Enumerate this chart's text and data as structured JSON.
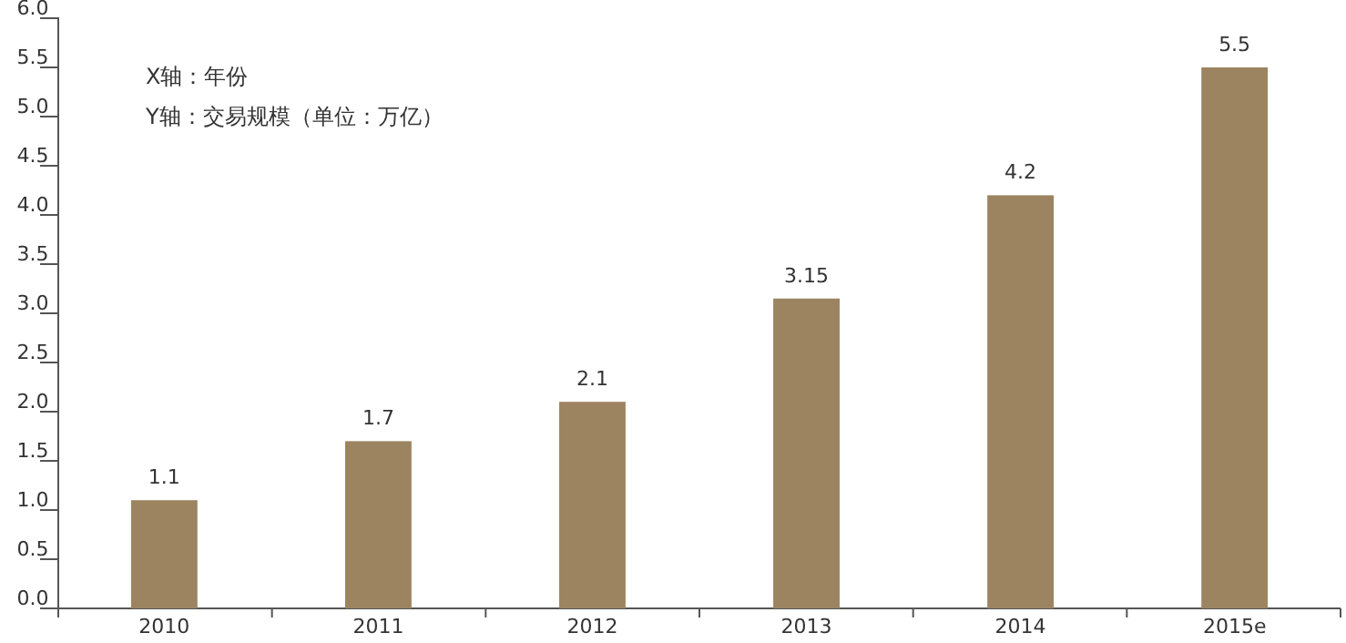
{
  "chart_data": {
    "type": "bar",
    "categories": [
      "2010",
      "2011",
      "2012",
      "2013",
      "2014",
      "2015e"
    ],
    "values": [
      1.1,
      1.7,
      2.1,
      3.15,
      4.2,
      5.5
    ],
    "color": "#9c8461",
    "data_labels": true,
    "ylim": [
      0,
      6
    ],
    "yticks": [
      {
        "value": 0,
        "label": "0.0"
      },
      {
        "value": 0.5,
        "label": "0.5"
      },
      {
        "value": 1,
        "label": "1.0"
      },
      {
        "value": 1.5,
        "label": "1.5"
      },
      {
        "value": 2,
        "label": "2.0"
      },
      {
        "value": 2.5,
        "label": "2.5"
      },
      {
        "value": 3,
        "label": "3.0"
      },
      {
        "value": 3.5,
        "label": "3.5"
      },
      {
        "value": 4,
        "label": "4.0"
      },
      {
        "value": 4.5,
        "label": "4.5"
      },
      {
        "value": 5,
        "label": "5.0"
      },
      {
        "value": 5.5,
        "label": "5.5"
      },
      {
        "value": 6,
        "label": "6.0"
      }
    ],
    "grid": false,
    "annotations": [
      "X轴：年份",
      "Y轴：交易规模（单位：万亿）"
    ]
  }
}
